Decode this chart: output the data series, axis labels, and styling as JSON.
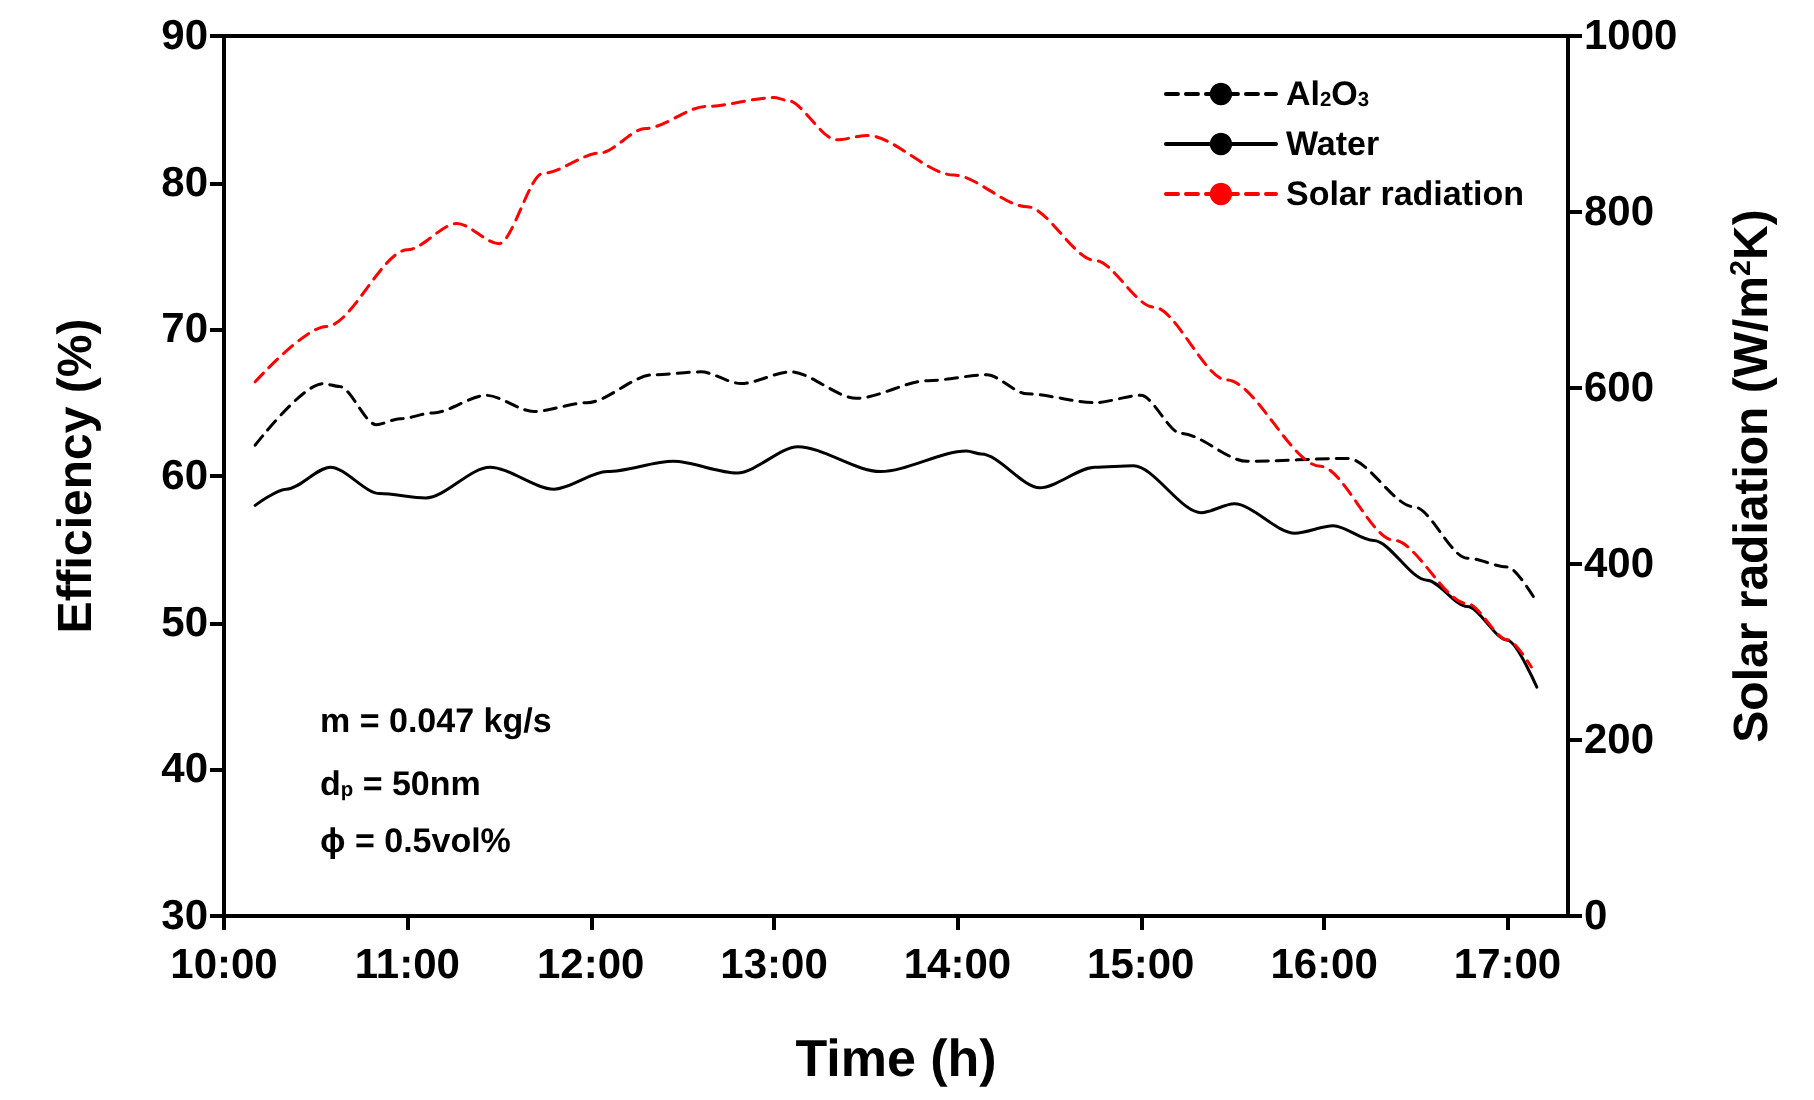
{
  "chart_data": {
    "type": "line",
    "xlabel": "Time (h)",
    "ylabel": "Efficiency (%)",
    "y2label": "Solar radiation (W/m$^{2}$K)",
    "xlim": [
      10,
      17.33
    ],
    "xticks": [
      {
        "value": 10,
        "label": "10:00"
      },
      {
        "value": 11,
        "label": "11:00"
      },
      {
        "value": 12,
        "label": "12:00"
      },
      {
        "value": 13,
        "label": "13:00"
      },
      {
        "value": 14,
        "label": "14:00"
      },
      {
        "value": 15,
        "label": "15:00"
      },
      {
        "value": 16,
        "label": "16:00"
      },
      {
        "value": 17,
        "label": "17:00"
      }
    ],
    "ylim": [
      30,
      90
    ],
    "yticks": [
      30,
      40,
      50,
      60,
      70,
      80,
      90
    ],
    "y2lim": [
      0,
      1000
    ],
    "y2ticks": [
      0,
      200,
      400,
      600,
      800,
      1000
    ],
    "grid": false,
    "legend": "top right",
    "marker": "none",
    "annotations": [
      "m = 0.047 kg/s",
      "d$_{p}$ = 50nm",
      "ϕ = 0.5vol%"
    ],
    "series": [
      {
        "name": "Al$_{2}$O$_{3}$",
        "color": "#000000",
        "line_style": "dashed",
        "x": [
          10.17,
          10.54,
          10.63,
          10.83,
          10.96,
          11.14,
          11.43,
          11.69,
          11.98,
          12.34,
          12.6,
          12.82,
          13.09,
          13.45,
          13.84,
          14.16,
          14.38,
          14.75,
          15.0,
          15.22,
          15.58,
          16.13,
          16.49,
          16.78,
          17.0,
          17.15
        ],
        "values": [
          62.1,
          66.3,
          66.1,
          63.5,
          63.9,
          64.3,
          65.5,
          64.4,
          65.0,
          66.9,
          67.1,
          66.3,
          67.1,
          65.3,
          66.5,
          66.9,
          65.6,
          65.0,
          65.5,
          62.9,
          61.0,
          61.2,
          57.9,
          54.4,
          53.8,
          51.6
        ]
      },
      {
        "name": "Water",
        "color": "#000000",
        "line_style": "solid",
        "x": [
          10.17,
          10.34,
          10.58,
          10.85,
          11.1,
          11.45,
          11.8,
          12.09,
          12.45,
          12.8,
          13.13,
          13.58,
          14.05,
          14.13,
          14.45,
          14.75,
          14.96,
          15.33,
          15.51,
          15.84,
          16.05,
          16.27,
          16.56,
          16.78,
          17.0,
          17.16
        ],
        "values": [
          58.0,
          59.1,
          60.6,
          58.8,
          58.5,
          60.6,
          59.1,
          60.3,
          61.0,
          60.2,
          62.0,
          60.3,
          61.7,
          61.5,
          59.2,
          60.6,
          60.7,
          57.5,
          58.1,
          56.1,
          56.6,
          55.6,
          52.9,
          51.1,
          48.8,
          45.6
        ]
      },
      {
        "name": "Solar radiation",
        "color": "#ff0000",
        "line_style": "dashed",
        "axis": "y2",
        "x": [
          10.17,
          10.56,
          11.0,
          11.27,
          11.5,
          11.74,
          12.05,
          12.3,
          12.63,
          13.0,
          13.07,
          13.34,
          13.51,
          13.98,
          14.38,
          14.75,
          15.07,
          15.47,
          15.98,
          16.38,
          16.78,
          17.0,
          17.13
        ],
        "values": [
          607,
          670,
          757,
          787,
          764,
          844,
          867,
          895,
          920,
          930,
          927,
          882,
          887,
          842,
          806,
          745,
          692,
          609,
          511,
          427,
          355,
          314,
          283
        ]
      }
    ]
  }
}
